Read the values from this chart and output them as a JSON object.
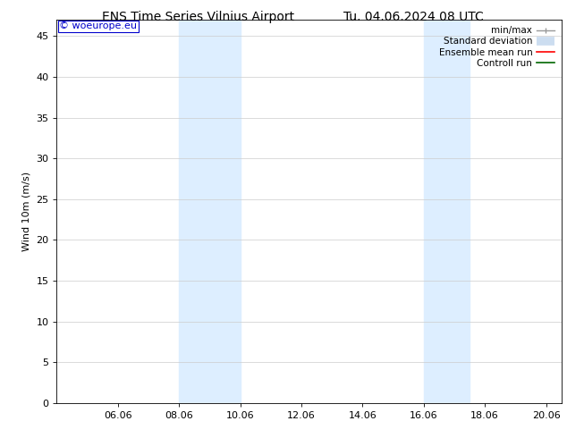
{
  "title_left": "ENS Time Series Vilnius Airport",
  "title_right": "Tu. 04.06.2024 08 UTC",
  "ylabel": "Wind 10m (m/s)",
  "watermark": "© woeurope.eu",
  "xlim_start": 4.0,
  "xlim_end": 20.5,
  "ylim_min": 0,
  "ylim_max": 47,
  "yticks": [
    0,
    5,
    10,
    15,
    20,
    25,
    30,
    35,
    40,
    45
  ],
  "xtick_labels": [
    "06.06",
    "08.06",
    "10.06",
    "12.06",
    "14.06",
    "16.06",
    "18.06",
    "20.06"
  ],
  "xtick_positions": [
    6,
    8,
    10,
    12,
    14,
    16,
    18,
    20
  ],
  "shaded_bands": [
    {
      "xmin": 8.0,
      "xmax": 10.0
    },
    {
      "xmin": 16.0,
      "xmax": 17.5
    }
  ],
  "shade_color": "#ddeeff",
  "background_color": "#ffffff",
  "title_fontsize": 10,
  "axis_fontsize": 8,
  "tick_fontsize": 8,
  "watermark_color": "#0000cc",
  "watermark_fontsize": 8,
  "legend_fontsize": 7.5,
  "minmax_color": "#999999",
  "stddev_color": "#ccddf0",
  "ensemble_color": "#ff0000",
  "control_color": "#006600"
}
